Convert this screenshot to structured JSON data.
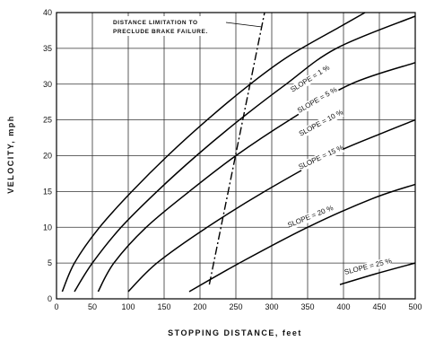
{
  "chart_data": {
    "type": "line",
    "title": "",
    "xlabel": "STOPPING DISTANCE, feet",
    "ylabel": "VELOCITY, mph",
    "xlim": [
      0,
      500
    ],
    "ylim": [
      0,
      40
    ],
    "x_ticks": [
      "0",
      "50",
      "100",
      "150",
      "200",
      "250",
      "300",
      "350",
      "400",
      "450",
      "500"
    ],
    "y_ticks": [
      "0",
      "5",
      "10",
      "15",
      "20",
      "25",
      "30",
      "35",
      "40"
    ],
    "grid": true,
    "series": [
      {
        "name": "SLOPE = 1 %",
        "label_at": [
          355,
          30.5
        ],
        "label_angle": -32,
        "points": [
          [
            8,
            1
          ],
          [
            25,
            5
          ],
          [
            60,
            10
          ],
          [
            105,
            15
          ],
          [
            155,
            20
          ],
          [
            210,
            25
          ],
          [
            270,
            30
          ],
          [
            325,
            34
          ],
          [
            395,
            38
          ],
          [
            430,
            40
          ]
        ]
      },
      {
        "name": "SLOPE = 5 %",
        "label_at": [
          365,
          27.5
        ],
        "label_angle": -30,
        "points": [
          [
            25,
            1
          ],
          [
            50,
            5
          ],
          [
            90,
            10
          ],
          [
            140,
            15
          ],
          [
            195,
            20
          ],
          [
            255,
            25
          ],
          [
            320,
            30
          ],
          [
            390,
            35
          ],
          [
            500,
            39.5
          ]
        ]
      },
      {
        "name": "SLOPE = 10 %",
        "label_at": [
          370,
          24.3
        ],
        "label_angle": -28,
        "points": [
          [
            58,
            1
          ],
          [
            80,
            5
          ],
          [
            125,
            10
          ],
          [
            185,
            15
          ],
          [
            250,
            20
          ],
          [
            325,
            25
          ],
          [
            410,
            30
          ],
          [
            500,
            33
          ]
        ]
      },
      {
        "name": "SLOPE = 15 %",
        "label_at": [
          370,
          19.5
        ],
        "label_angle": -25,
        "points": [
          [
            100,
            1
          ],
          [
            140,
            5
          ],
          [
            210,
            10
          ],
          [
            290,
            15
          ],
          [
            380,
            20
          ],
          [
            450,
            23
          ],
          [
            500,
            25
          ]
        ]
      },
      {
        "name": "SLOPE = 20 %",
        "label_at": [
          355,
          11.2
        ],
        "label_angle": -22,
        "points": [
          [
            185,
            1
          ],
          [
            255,
            5
          ],
          [
            350,
            10
          ],
          [
            440,
            14
          ],
          [
            500,
            16
          ]
        ]
      },
      {
        "name": "SLOPE = 25 %",
        "label_at": [
          435,
          4.2
        ],
        "label_angle": -14,
        "points": [
          [
            395,
            2
          ],
          [
            445,
            3.5
          ],
          [
            500,
            5
          ]
        ]
      }
    ],
    "limit_line": {
      "name": "DISTANCE LIMITATION TO PRECLUDE BRAKE FAILURE",
      "points": [
        [
          213,
          2
        ],
        [
          290,
          40
        ]
      ]
    },
    "annotations": [
      {
        "text_lines": [
          "DISTANCE LIMITATION TO",
          "PRECLUDE BRAKE FAILURE."
        ],
        "points_to": [
          285,
          38
        ]
      }
    ]
  }
}
